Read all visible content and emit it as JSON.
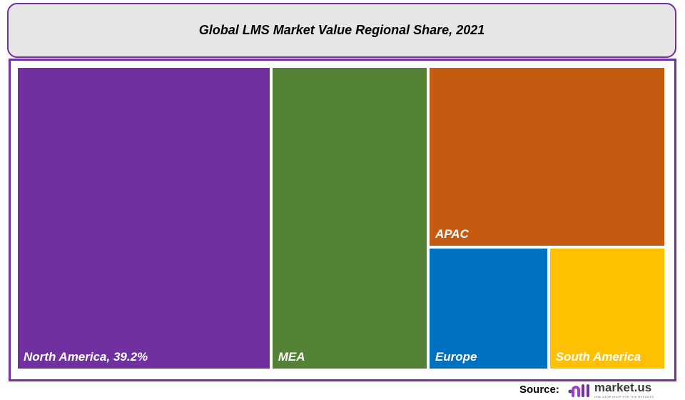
{
  "chart_data": {
    "type": "treemap",
    "title": "Global LMS Market Value Regional Share, 2021",
    "unit": "%",
    "items": [
      {
        "name": "North America",
        "label": "North America, 39.2%",
        "value": 39.2,
        "color": "#7030a0"
      },
      {
        "name": "MEA",
        "label": "MEA",
        "value": 24.2,
        "color": "#548235"
      },
      {
        "name": "APAC",
        "label": "APAC",
        "value": 21.8,
        "color": "#c55a11"
      },
      {
        "name": "Europe",
        "label": "Europe",
        "value": 7.5,
        "color": "#0070c0"
      },
      {
        "name": "South America",
        "label": "South America",
        "value": 7.3,
        "color": "#ffc000"
      }
    ]
  },
  "footer": {
    "source_label": "Source:",
    "logo_text": "market.us",
    "logo_tagline": "ONE STOP SHOP FOR THE REPORTS"
  },
  "colors": {
    "frame": "#7030a0",
    "title_bg": "#e6e6e6"
  }
}
